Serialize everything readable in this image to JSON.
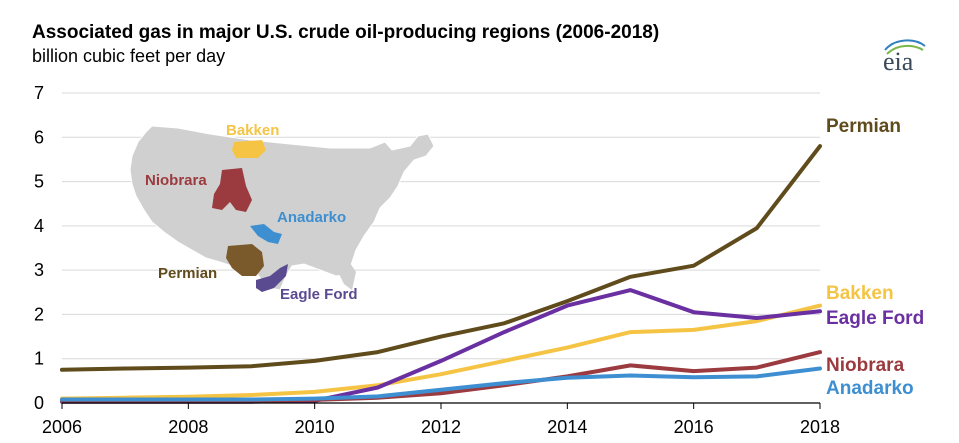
{
  "header": {
    "title": "Associated gas in major U.S. crude oil-producing regions (2006-2018)",
    "subtitle": "billion cubic feet per day",
    "logo_text": "eia"
  },
  "map_labels": [
    "Bakken",
    "Niobrara",
    "Anadarko",
    "Permian",
    "Eagle Ford"
  ],
  "colors": {
    "Permian": "#5f4b1c",
    "Bakken": "#f5c445",
    "Eagle Ford": "#6a2fa0",
    "Niobrara": "#9b3a3f",
    "Anadarko": "#3d8fd1",
    "map": "#d0d0d0",
    "grid": "#d9d9d9"
  },
  "chart_data": {
    "type": "line",
    "title": "Associated gas in major U.S. crude oil-producing regions (2006-2018)",
    "ylabel": "billion cubic feet per day",
    "xlim": [
      2006,
      2018
    ],
    "ylim": [
      0,
      7
    ],
    "x_ticks": [
      2006,
      2008,
      2010,
      2012,
      2014,
      2016,
      2018
    ],
    "y_ticks": [
      0,
      1,
      2,
      3,
      4,
      5,
      6,
      7
    ],
    "grid": "horizontal",
    "x": [
      2006,
      2007,
      2008,
      2009,
      2010,
      2011,
      2012,
      2013,
      2014,
      2015,
      2016,
      2017,
      2018
    ],
    "series": [
      {
        "name": "Permian",
        "values": [
          0.75,
          0.78,
          0.8,
          0.83,
          0.95,
          1.15,
          1.5,
          1.8,
          2.3,
          2.85,
          3.1,
          3.95,
          5.8
        ]
      },
      {
        "name": "Bakken",
        "values": [
          0.1,
          0.12,
          0.14,
          0.18,
          0.25,
          0.4,
          0.65,
          0.95,
          1.25,
          1.6,
          1.65,
          1.85,
          2.2
        ]
      },
      {
        "name": "Eagle Ford",
        "values": [
          0.03,
          0.03,
          0.03,
          0.03,
          0.05,
          0.35,
          0.95,
          1.6,
          2.2,
          2.55,
          2.05,
          1.92,
          2.07
        ]
      },
      {
        "name": "Niobrara",
        "values": [
          0.05,
          0.05,
          0.05,
          0.05,
          0.07,
          0.12,
          0.22,
          0.4,
          0.6,
          0.85,
          0.72,
          0.8,
          1.15
        ]
      },
      {
        "name": "Anadarko",
        "values": [
          0.08,
          0.08,
          0.08,
          0.08,
          0.1,
          0.15,
          0.3,
          0.45,
          0.57,
          0.62,
          0.58,
          0.6,
          0.78
        ]
      }
    ]
  }
}
